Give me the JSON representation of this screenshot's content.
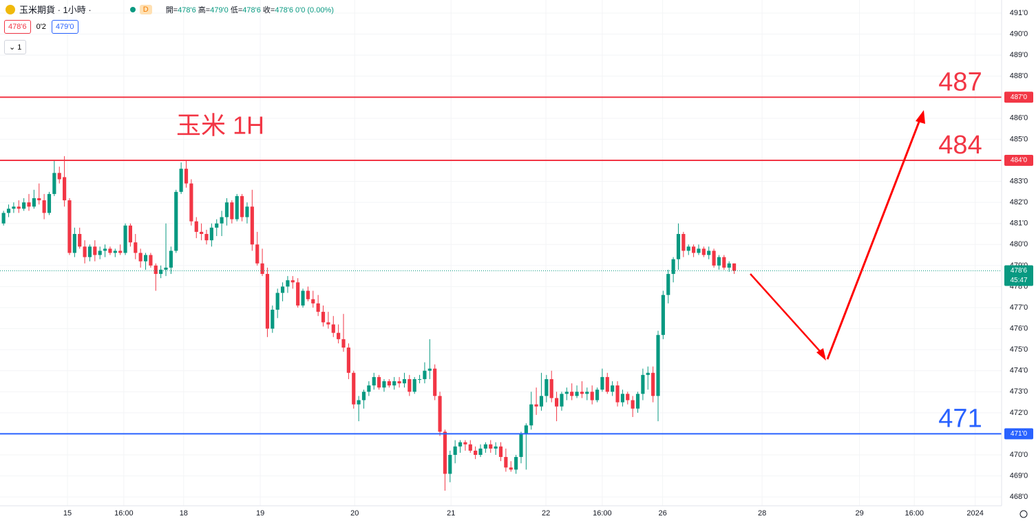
{
  "header": {
    "symbol": "玉米期貨 · 1小時 ·",
    "badge": "D",
    "ohlc": [
      {
        "label": "開=",
        "value": "478'6"
      },
      {
        "label": "高=",
        "value": "479'0"
      },
      {
        "label": "低=",
        "value": "478'6"
      },
      {
        "label": "收=",
        "value": "478'6"
      }
    ],
    "change": "0'0 (0.00%)",
    "sell": "478'6",
    "spread": "0'2",
    "buy": "479'0",
    "lots": "1"
  },
  "chart_data": {
    "type": "candlestick",
    "annotation": "玉米 1H",
    "up_color": "#089981",
    "down_color": "#f23645",
    "ylim": [
      467.58,
      491.62
    ],
    "xlim": [
      -0.7,
      196.7
    ],
    "grid": true,
    "yticks": [
      {
        "value": 468,
        "label": "468'0"
      },
      {
        "value": 469,
        "label": "469'0"
      },
      {
        "value": 470,
        "label": "470'0"
      },
      {
        "value": 471,
        "label": "471'0"
      },
      {
        "value": 472,
        "label": "472'0"
      },
      {
        "value": 473,
        "label": "473'0"
      },
      {
        "value": 474,
        "label": "474'0"
      },
      {
        "value": 475,
        "label": "475'0"
      },
      {
        "value": 476,
        "label": "476'0"
      },
      {
        "value": 477,
        "label": "477'0"
      },
      {
        "value": 478,
        "label": "478'0"
      },
      {
        "value": 479,
        "label": "479'0"
      },
      {
        "value": 480,
        "label": "480'0"
      },
      {
        "value": 481,
        "label": "481'0"
      },
      {
        "value": 482,
        "label": "482'0"
      },
      {
        "value": 483,
        "label": "483'0"
      },
      {
        "value": 484,
        "label": "484'0"
      },
      {
        "value": 485,
        "label": "485'0"
      },
      {
        "value": 486,
        "label": "486'0"
      },
      {
        "value": 487,
        "label": "487'0"
      },
      {
        "value": 488,
        "label": "488'0"
      },
      {
        "value": 489,
        "label": "489'0"
      },
      {
        "value": 490,
        "label": "490'0"
      },
      {
        "value": 491,
        "label": "491'0"
      }
    ],
    "xticks": [
      {
        "value": 12.6,
        "label": "15"
      },
      {
        "value": 23.7,
        "label": "16:00"
      },
      {
        "value": 35.5,
        "label": "18"
      },
      {
        "value": 50.6,
        "label": "19"
      },
      {
        "value": 69.2,
        "label": "20"
      },
      {
        "value": 88.2,
        "label": "21"
      },
      {
        "value": 106.9,
        "label": "22"
      },
      {
        "value": 118.0,
        "label": "16:00"
      },
      {
        "value": 129.9,
        "label": "26"
      },
      {
        "value": 149.5,
        "label": "28"
      },
      {
        "value": 168.7,
        "label": "29"
      },
      {
        "value": 179.5,
        "label": "16:00"
      },
      {
        "value": 191.5,
        "label": "2024"
      }
    ],
    "levels": [
      {
        "value": 487,
        "label": "487",
        "axis_label": "487'0",
        "color": "#f23645"
      },
      {
        "value": 484,
        "label": "484",
        "axis_label": "484'0",
        "color": "#f23645"
      },
      {
        "value": 471,
        "label": "471",
        "axis_label": "471'0",
        "color": "#2962ff"
      }
    ],
    "last": {
      "value": 478.75,
      "label": "478'6",
      "countdown": "45:47"
    },
    "ohlc": [
      [
        481.0,
        481.6,
        480.9,
        481.5
      ],
      [
        481.5,
        481.9,
        481.3,
        481.7
      ],
      [
        481.7,
        482.0,
        481.5,
        481.8
      ],
      [
        481.8,
        482.1,
        481.5,
        481.7
      ],
      [
        481.7,
        482.2,
        481.6,
        482.0
      ],
      [
        482.0,
        482.4,
        481.6,
        481.8
      ],
      [
        481.8,
        482.6,
        481.7,
        482.2
      ],
      [
        482.2,
        482.9,
        481.9,
        482.1
      ],
      [
        482.1,
        482.4,
        481.2,
        481.5
      ],
      [
        481.5,
        482.5,
        481.4,
        482.4
      ],
      [
        482.4,
        484.0,
        482.3,
        483.4
      ],
      [
        483.4,
        483.7,
        482.9,
        483.1
      ],
      [
        483.2,
        484.2,
        481.8,
        482.1
      ],
      [
        482.1,
        482.2,
        479.5,
        479.6
      ],
      [
        479.6,
        480.8,
        479.4,
        480.5
      ],
      [
        480.5,
        480.8,
        479.8,
        479.9
      ],
      [
        479.9,
        480.2,
        479.1,
        479.4
      ],
      [
        479.4,
        480.0,
        479.2,
        479.9
      ],
      [
        479.9,
        480.2,
        479.2,
        479.5
      ],
      [
        479.5,
        479.9,
        479.3,
        479.7
      ],
      [
        479.7,
        480.0,
        479.4,
        479.8
      ],
      [
        479.8,
        479.9,
        479.5,
        479.6
      ],
      [
        479.6,
        479.8,
        479.4,
        479.7
      ],
      [
        479.7,
        480.0,
        479.5,
        479.6
      ],
      [
        479.6,
        481.0,
        479.5,
        480.9
      ],
      [
        480.9,
        481.0,
        479.9,
        480.1
      ],
      [
        480.1,
        480.5,
        479.3,
        479.6
      ],
      [
        479.6,
        479.8,
        478.9,
        479.2
      ],
      [
        479.2,
        479.6,
        478.8,
        479.5
      ],
      [
        479.5,
        479.6,
        478.9,
        479.0
      ],
      [
        479.0,
        479.1,
        477.8,
        478.6
      ],
      [
        478.6,
        479.0,
        478.4,
        478.8
      ],
      [
        478.8,
        481.0,
        478.5,
        478.9
      ],
      [
        478.9,
        479.9,
        478.6,
        479.7
      ],
      [
        479.7,
        482.6,
        479.6,
        482.5
      ],
      [
        482.5,
        483.9,
        482.4,
        483.6
      ],
      [
        483.6,
        484.0,
        482.7,
        482.9
      ],
      [
        482.9,
        483.1,
        480.9,
        481.1
      ],
      [
        481.1,
        481.3,
        480.3,
        480.6
      ],
      [
        480.6,
        481.0,
        480.2,
        480.5
      ],
      [
        480.5,
        480.7,
        480.0,
        480.2
      ],
      [
        480.2,
        481.0,
        479.9,
        480.8
      ],
      [
        480.8,
        481.2,
        480.4,
        481.0
      ],
      [
        481.0,
        481.6,
        480.4,
        481.3
      ],
      [
        481.3,
        482.2,
        480.9,
        482.0
      ],
      [
        482.0,
        482.1,
        481.0,
        481.2
      ],
      [
        481.2,
        482.4,
        481.1,
        482.3
      ],
      [
        482.3,
        482.4,
        481.1,
        481.3
      ],
      [
        481.3,
        482.0,
        481.0,
        481.8
      ],
      [
        481.8,
        482.6,
        479.7,
        480.0
      ],
      [
        480.0,
        480.6,
        479.0,
        479.1
      ],
      [
        479.1,
        479.8,
        478.5,
        478.6
      ],
      [
        478.6,
        478.9,
        475.6,
        476.0
      ],
      [
        476.0,
        477.1,
        475.8,
        476.9
      ],
      [
        476.9,
        477.9,
        476.5,
        477.7
      ],
      [
        477.7,
        478.2,
        477.3,
        478.0
      ],
      [
        478.0,
        478.5,
        477.7,
        478.3
      ],
      [
        478.3,
        478.5,
        477.9,
        478.2
      ],
      [
        478.2,
        478.4,
        477.0,
        477.1
      ],
      [
        477.1,
        477.9,
        477.0,
        477.8
      ],
      [
        477.8,
        478.0,
        477.3,
        477.4
      ],
      [
        477.4,
        477.8,
        477.0,
        477.2
      ],
      [
        477.2,
        477.6,
        476.6,
        476.8
      ],
      [
        476.8,
        477.1,
        476.1,
        476.3
      ],
      [
        476.3,
        476.8,
        476.0,
        476.2
      ],
      [
        476.2,
        476.6,
        475.6,
        475.8
      ],
      [
        475.8,
        476.2,
        475.3,
        475.5
      ],
      [
        475.5,
        476.7,
        474.9,
        475.1
      ],
      [
        475.1,
        475.3,
        473.6,
        473.9
      ],
      [
        473.9,
        474.0,
        472.2,
        472.4
      ],
      [
        472.4,
        472.8,
        471.6,
        472.6
      ],
      [
        472.6,
        473.1,
        472.2,
        473.0
      ],
      [
        473.0,
        473.5,
        472.8,
        473.3
      ],
      [
        473.3,
        473.9,
        473.1,
        473.7
      ],
      [
        473.7,
        473.8,
        473.1,
        473.2
      ],
      [
        473.2,
        473.6,
        473.0,
        473.5
      ],
      [
        473.5,
        473.6,
        473.2,
        473.3
      ],
      [
        473.3,
        473.7,
        473.1,
        473.5
      ],
      [
        473.5,
        473.7,
        473.2,
        473.4
      ],
      [
        473.4,
        473.9,
        473.2,
        473.6
      ],
      [
        473.6,
        473.8,
        472.8,
        473.0
      ],
      [
        473.0,
        473.7,
        472.9,
        473.6
      ],
      [
        473.6,
        473.8,
        473.4,
        473.6
      ],
      [
        473.6,
        474.4,
        473.4,
        474.0
      ],
      [
        474.0,
        475.5,
        473.6,
        474.1
      ],
      [
        474.1,
        474.3,
        472.6,
        472.8
      ],
      [
        472.8,
        473.0,
        470.9,
        471.1
      ],
      [
        471.1,
        471.2,
        468.3,
        469.1
      ],
      [
        469.1,
        470.2,
        468.7,
        470.0
      ],
      [
        470.0,
        470.7,
        469.6,
        470.4
      ],
      [
        470.4,
        470.7,
        470.1,
        470.6
      ],
      [
        470.6,
        470.7,
        470.2,
        470.5
      ],
      [
        470.5,
        470.7,
        470.1,
        470.2
      ],
      [
        470.2,
        470.4,
        469.8,
        470.0
      ],
      [
        470.0,
        470.5,
        469.9,
        470.3
      ],
      [
        470.3,
        470.6,
        470.1,
        470.5
      ],
      [
        470.5,
        470.7,
        470.1,
        470.3
      ],
      [
        470.3,
        470.6,
        470.0,
        470.4
      ],
      [
        470.4,
        470.6,
        469.7,
        469.9
      ],
      [
        469.9,
        470.3,
        469.2,
        469.4
      ],
      [
        469.4,
        469.7,
        469.2,
        469.3
      ],
      [
        469.3,
        470.0,
        469.1,
        469.9
      ],
      [
        469.9,
        471.1,
        469.6,
        471.0
      ],
      [
        471.0,
        471.5,
        469.3,
        471.4
      ],
      [
        471.4,
        473.0,
        471.2,
        472.4
      ],
      [
        472.4,
        473.2,
        471.9,
        472.3
      ],
      [
        472.3,
        473.9,
        472.1,
        472.8
      ],
      [
        472.8,
        473.8,
        472.5,
        473.6
      ],
      [
        473.6,
        474.0,
        472.5,
        472.7
      ],
      [
        472.7,
        473.0,
        471.6,
        472.3
      ],
      [
        472.3,
        473.0,
        472.1,
        472.9
      ],
      [
        472.9,
        473.2,
        472.6,
        473.0
      ],
      [
        473.0,
        473.4,
        472.6,
        472.8
      ],
      [
        472.8,
        473.3,
        472.7,
        473.0
      ],
      [
        473.0,
        473.5,
        472.7,
        472.9
      ],
      [
        472.9,
        473.2,
        472.6,
        473.0
      ],
      [
        473.0,
        473.3,
        472.4,
        472.6
      ],
      [
        472.6,
        473.2,
        472.5,
        473.1
      ],
      [
        473.1,
        474.1,
        473.0,
        473.7
      ],
      [
        473.7,
        473.9,
        472.9,
        473.0
      ],
      [
        473.0,
        473.5,
        472.8,
        473.3
      ],
      [
        473.3,
        473.5,
        472.3,
        472.5
      ],
      [
        472.5,
        473.1,
        472.3,
        472.9
      ],
      [
        472.9,
        473.0,
        472.4,
        472.6
      ],
      [
        472.6,
        472.8,
        471.8,
        472.2
      ],
      [
        472.2,
        473.0,
        472.0,
        472.9
      ],
      [
        472.9,
        474.1,
        472.6,
        473.8
      ],
      [
        473.8,
        474.2,
        473.1,
        473.9
      ],
      [
        473.9,
        474.2,
        472.5,
        472.8
      ],
      [
        472.8,
        475.9,
        471.6,
        475.7
      ],
      [
        475.7,
        477.8,
        475.5,
        477.6
      ],
      [
        477.6,
        478.8,
        477.2,
        478.6
      ],
      [
        478.6,
        479.4,
        478.2,
        479.3
      ],
      [
        479.3,
        481.0,
        478.8,
        480.5
      ],
      [
        480.5,
        480.6,
        479.4,
        479.7
      ],
      [
        479.7,
        480.0,
        479.5,
        479.9
      ],
      [
        479.9,
        480.0,
        479.4,
        479.6
      ],
      [
        479.6,
        480.0,
        479.5,
        479.8
      ],
      [
        479.8,
        479.9,
        479.4,
        479.5
      ],
      [
        479.5,
        479.9,
        479.3,
        479.7
      ],
      [
        479.7,
        479.8,
        478.9,
        479.0
      ],
      [
        479.0,
        479.5,
        478.8,
        479.4
      ],
      [
        479.4,
        479.5,
        478.8,
        478.9
      ],
      [
        478.9,
        479.2,
        478.7,
        479.1
      ],
      [
        479.1,
        479.1,
        478.6,
        478.75
      ]
    ]
  }
}
